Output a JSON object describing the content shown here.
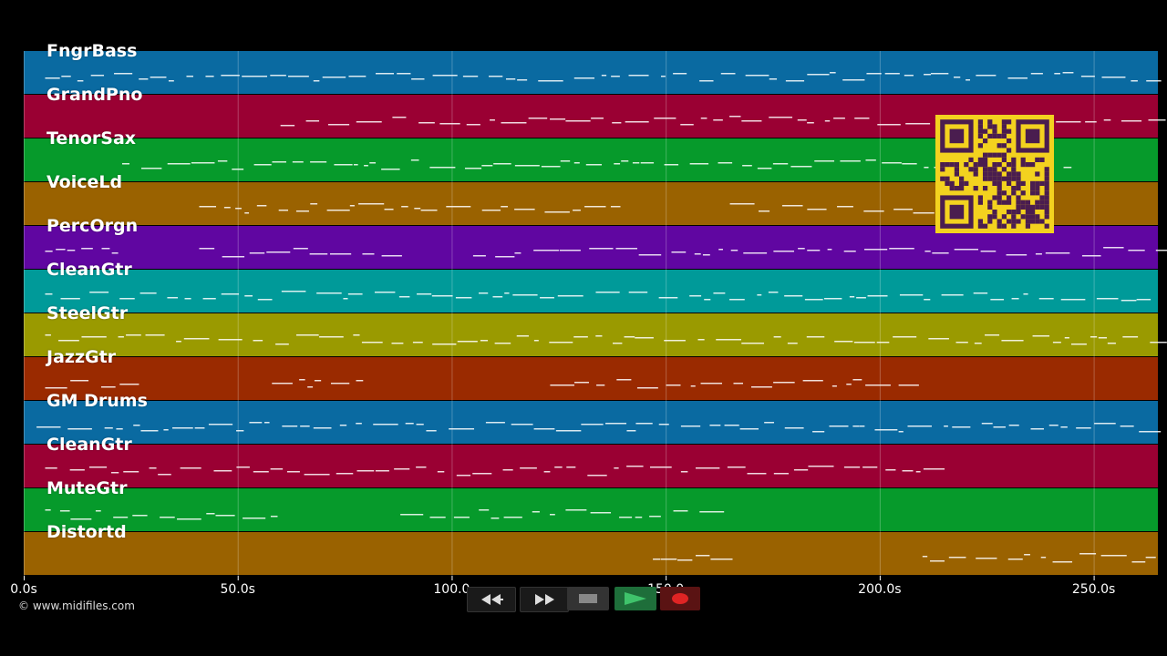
{
  "colors": {
    "background": "#000000",
    "note": "#ffffff",
    "grid": "#ffffff",
    "qr_bg": "#f3d21f",
    "qr_fg": "#4a1d4f"
  },
  "tracks": [
    {
      "label": "FngrBass",
      "color": "#0a6aa1"
    },
    {
      "label": "GrandPno",
      "color": "#9a0033"
    },
    {
      "label": "TenorSax",
      "color": "#069a2b"
    },
    {
      "label": "VoiceLd",
      "color": "#9a6200"
    },
    {
      "label": "PercOrgn",
      "color": "#6006a1"
    },
    {
      "label": "CleanGtr",
      "color": "#009a99"
    },
    {
      "label": "SteelGtr",
      "color": "#9a9a00"
    },
    {
      "label": "JazzGtr",
      "color": "#9a2a00"
    },
    {
      "label": "GM Drums",
      "color": "#0a6aa1"
    },
    {
      "label": "CleanGtr",
      "color": "#9a0033"
    },
    {
      "label": "MuteGtr",
      "color": "#069a2b"
    },
    {
      "label": "Distortd",
      "color": "#9a6200"
    }
  ],
  "timeline": {
    "start": 0,
    "end": 265,
    "ticks": [
      {
        "value": 0,
        "label": "0.0s"
      },
      {
        "value": 50,
        "label": "50.0s"
      },
      {
        "value": 100,
        "label": "100.0"
      },
      {
        "value": 150,
        "label": "150.0"
      },
      {
        "value": 200,
        "label": "200.0s"
      },
      {
        "value": 250,
        "label": "250.0s"
      }
    ]
  },
  "transport": {
    "rewind_icon": "rewind-icon",
    "forward_icon": "fast-forward-icon",
    "stop_icon": "stop-icon",
    "play_icon": "play-icon",
    "record_icon": "record-icon"
  },
  "copyright": "© www.midifiles.com",
  "qr": {
    "icon": "qr-code-icon"
  }
}
